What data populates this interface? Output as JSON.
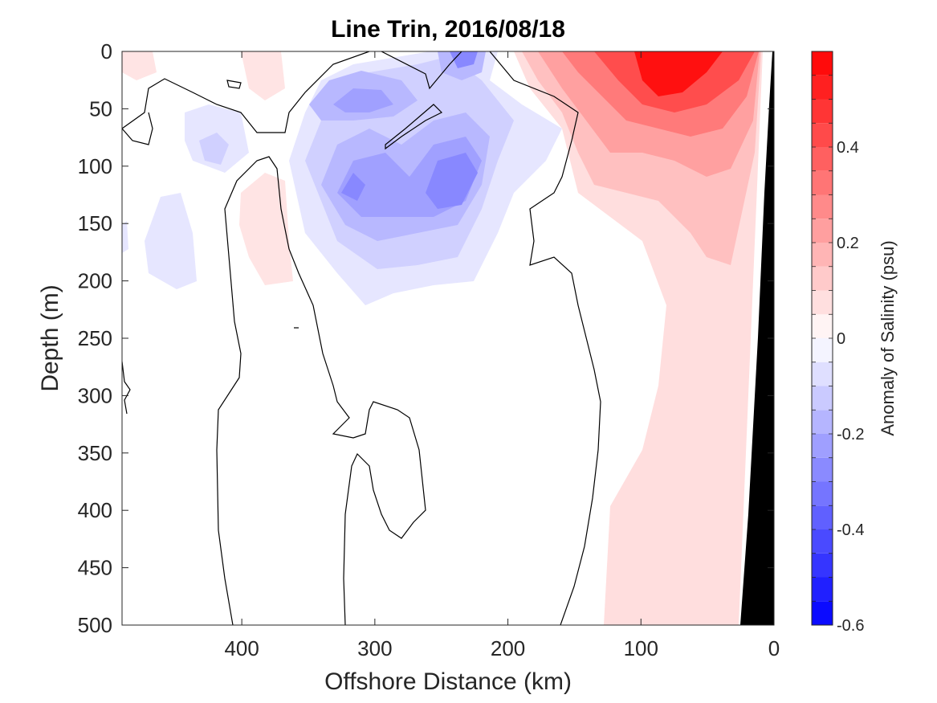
{
  "chart_data": {
    "type": "heatmap",
    "title": "Line Trin, 2016/08/18",
    "xlabel": "Offshore Distance (km)",
    "ylabel": "Depth (m)",
    "xlim": [
      490,
      0
    ],
    "ylim": [
      0,
      500
    ],
    "x_reversed": true,
    "y_reversed": true,
    "x_ticks": [
      "400",
      "300",
      "200",
      "100",
      "0"
    ],
    "x_tick_values": [
      400,
      300,
      200,
      100,
      0
    ],
    "y_ticks": [
      "0",
      "50",
      "100",
      "150",
      "200",
      "250",
      "300",
      "350",
      "400",
      "450",
      "500"
    ],
    "y_tick_values": [
      0,
      50,
      100,
      150,
      200,
      250,
      300,
      350,
      400,
      450,
      500
    ],
    "colorbar": {
      "label": "Anomaly of Salinity (psu)",
      "range": [
        -0.6,
        0.6
      ],
      "step": 0.05,
      "tick_labels": [
        "0.4",
        "0.2",
        "0",
        "-0.2",
        "-0.4",
        "-0.6"
      ],
      "tick_values": [
        0.4,
        0.2,
        0,
        -0.2,
        -0.4,
        -0.6
      ],
      "negative_color": "#0000ff",
      "positive_color": "#ff0000",
      "neutral_color": "#ffffff"
    },
    "zero_contour_color": "#000000",
    "land_mask_color": "#000000",
    "anomaly_features": [
      {
        "kind": "positive",
        "x_center": 70,
        "depth_center": 30,
        "peak": 0.55
      },
      {
        "kind": "positive_shelf",
        "x_range": [
          0,
          130
        ],
        "depth_range": [
          0,
          500
        ],
        "value": 0.08
      },
      {
        "kind": "negative",
        "x_center": 310,
        "depth_center": 120,
        "peak": -0.3
      },
      {
        "kind": "negative",
        "x_center": 240,
        "depth_center": 110,
        "peak": -0.3
      },
      {
        "kind": "negative",
        "x_center": 295,
        "depth_center": 40,
        "peak": -0.25
      },
      {
        "kind": "negative",
        "x_center": 235,
        "depth_center": 8,
        "peak": -0.35
      },
      {
        "kind": "negative_weak",
        "x_center": 420,
        "depth_center": 85,
        "value": -0.08
      },
      {
        "kind": "negative_weak",
        "x_center": 440,
        "depth_center": 170,
        "value": -0.05
      },
      {
        "kind": "positive_weak",
        "x_center": 370,
        "depth_center": 170,
        "value": 0.07
      }
    ]
  }
}
